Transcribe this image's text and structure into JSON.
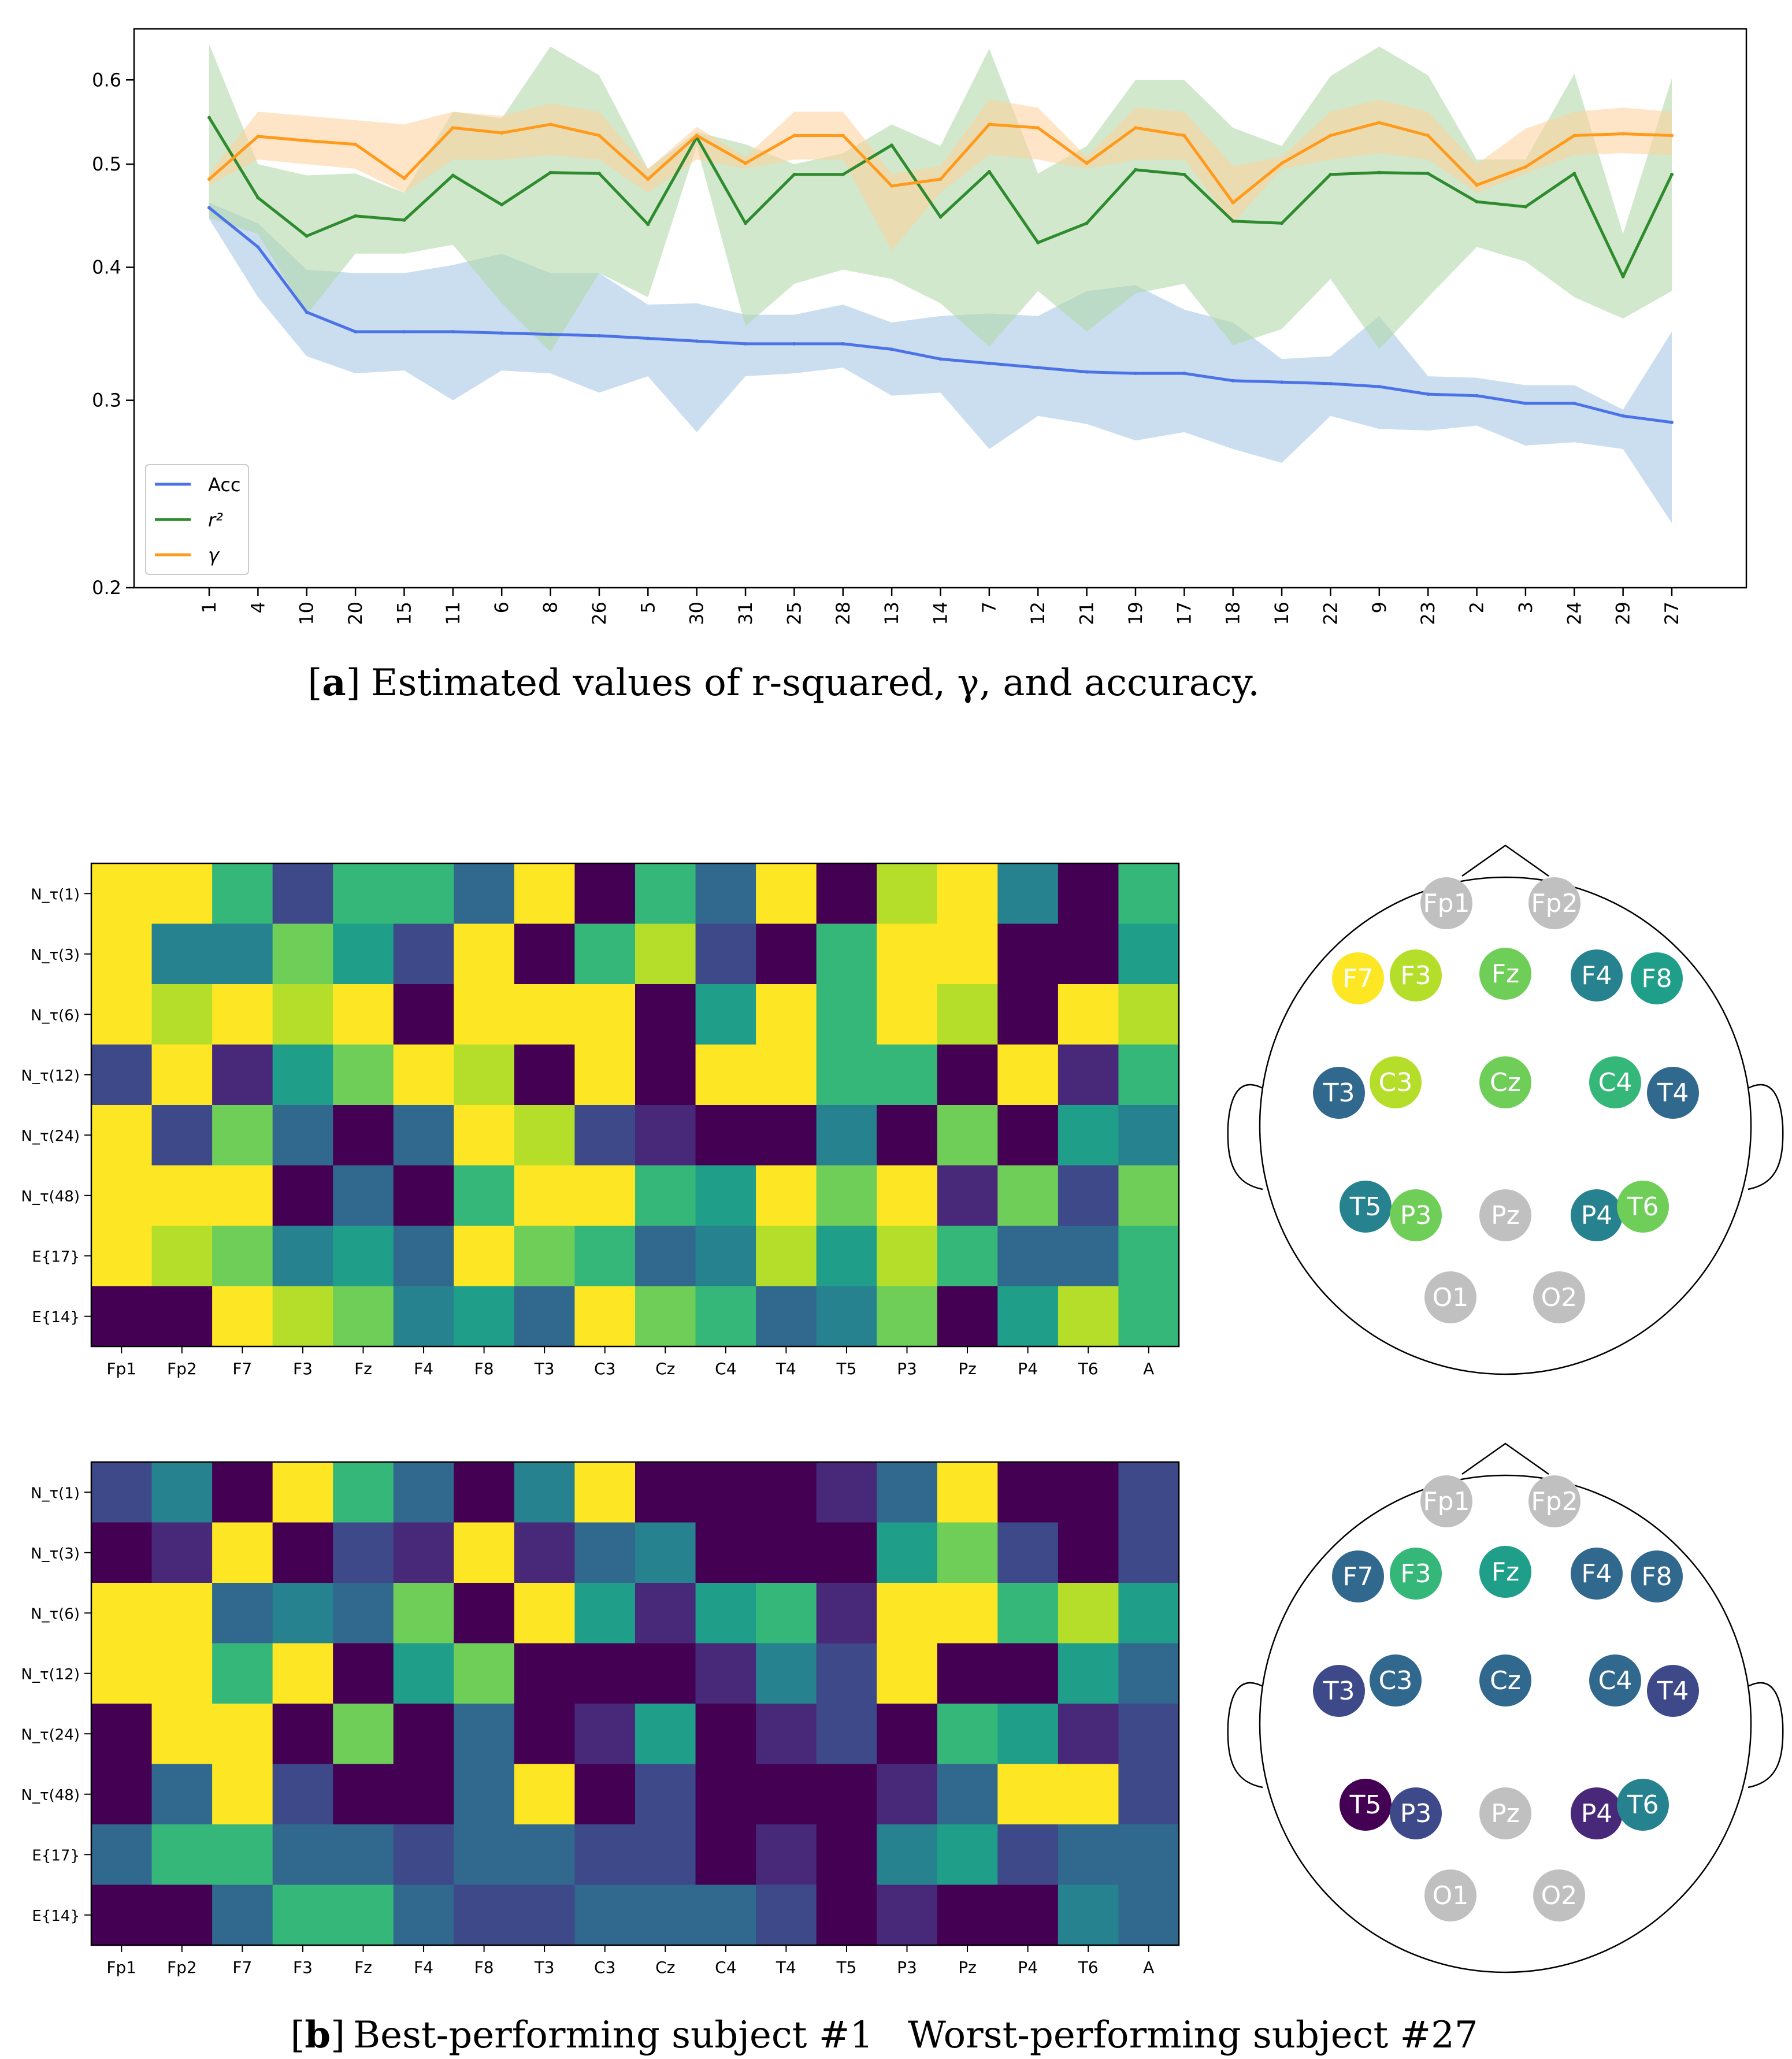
{
  "colors": {
    "acc": "#4c72e8",
    "r2": "#2e8b2e",
    "gamma": "#ff9a1a",
    "acc_band": "#a9c8e6",
    "r2_band": "#b2d8ab",
    "gamma_band": "#ffcf9a",
    "inactive": "#c0c0c0",
    "viridis": [
      "#440154",
      "#482878",
      "#3e4989",
      "#31688e",
      "#26828e",
      "#1f9e89",
      "#35b779",
      "#6ece58",
      "#b5de2b",
      "#fde725"
    ]
  },
  "chart_data": [
    {
      "type": "line",
      "title": "",
      "scale": "log",
      "ylim": [
        0.2,
        0.67
      ],
      "yticks": [
        0.2,
        0.3,
        0.4,
        0.5,
        0.6
      ],
      "ytick_labels": [
        "0.2",
        "0.3",
        "0.4",
        "0.5",
        "0.6"
      ],
      "categories": [
        "1",
        "4",
        "10",
        "20",
        "15",
        "11",
        "6",
        "8",
        "26",
        "5",
        "30",
        "31",
        "25",
        "28",
        "13",
        "14",
        "7",
        "12",
        "21",
        "19",
        "17",
        "18",
        "16",
        "22",
        "9",
        "23",
        "2",
        "3",
        "24",
        "29",
        "27"
      ],
      "series": [
        {
          "name": "Acc",
          "legend_label": "Acc",
          "values": [
            0.455,
            0.418,
            0.363,
            0.348,
            0.348,
            0.348,
            0.347,
            0.346,
            0.345,
            0.343,
            0.341,
            0.339,
            0.339,
            0.339,
            0.335,
            0.328,
            0.325,
            0.322,
            0.319,
            0.318,
            0.318,
            0.313,
            0.312,
            0.311,
            0.309,
            0.304,
            0.303,
            0.298,
            0.298,
            0.29,
            0.286
          ],
          "lower": [
            0.444,
            0.375,
            0.33,
            0.318,
            0.32,
            0.3,
            0.32,
            0.318,
            0.305,
            0.316,
            0.28,
            0.316,
            0.318,
            0.322,
            0.303,
            0.305,
            0.27,
            0.29,
            0.285,
            0.275,
            0.28,
            0.27,
            0.262,
            0.29,
            0.282,
            0.281,
            0.284,
            0.272,
            0.274,
            0.27,
            0.23
          ],
          "upper": [
            0.46,
            0.44,
            0.398,
            0.395,
            0.395,
            0.402,
            0.412,
            0.395,
            0.395,
            0.369,
            0.37,
            0.361,
            0.361,
            0.369,
            0.355,
            0.36,
            0.362,
            0.36,
            0.38,
            0.385,
            0.365,
            0.355,
            0.328,
            0.33,
            0.36,
            0.316,
            0.315,
            0.31,
            0.31,
            0.294,
            0.348
          ]
        },
        {
          "name": "r2",
          "legend_label": "r²",
          "values": [
            0.553,
            0.465,
            0.428,
            0.447,
            0.443,
            0.488,
            0.458,
            0.491,
            0.49,
            0.439,
            0.53,
            0.44,
            0.489,
            0.489,
            0.521,
            0.446,
            0.492,
            0.422,
            0.44,
            0.494,
            0.489,
            0.442,
            0.44,
            0.489,
            0.491,
            0.49,
            0.461,
            0.456,
            0.49,
            0.392,
            0.489
          ],
          "lower": [
            0.445,
            0.43,
            0.361,
            0.412,
            0.412,
            0.42,
            0.37,
            0.333,
            0.395,
            0.375,
            0.52,
            0.352,
            0.386,
            0.398,
            0.39,
            0.37,
            0.337,
            0.38,
            0.348,
            0.378,
            0.386,
            0.338,
            0.35,
            0.39,
            0.335,
            0.375,
            0.418,
            0.405,
            0.375,
            0.358,
            0.38
          ],
          "upper": [
            0.648,
            0.5,
            0.488,
            0.49,
            0.47,
            0.56,
            0.552,
            0.645,
            0.606,
            0.495,
            0.536,
            0.522,
            0.5,
            0.512,
            0.545,
            0.52,
            0.642,
            0.49,
            0.52,
            0.6,
            0.6,
            0.541,
            0.52,
            0.605,
            0.645,
            0.606,
            0.505,
            0.505,
            0.608,
            0.43,
            0.602
          ]
        },
        {
          "name": "gamma",
          "legend_label": "γ",
          "values": [
            0.484,
            0.531,
            0.526,
            0.522,
            0.485,
            0.541,
            0.535,
            0.545,
            0.532,
            0.484,
            0.532,
            0.501,
            0.532,
            0.532,
            0.477,
            0.484,
            0.545,
            0.541,
            0.501,
            0.541,
            0.532,
            0.46,
            0.501,
            0.532,
            0.547,
            0.532,
            0.478,
            0.497,
            0.532,
            0.534,
            0.532
          ],
          "lower": [
            0.478,
            0.505,
            0.5,
            0.495,
            0.47,
            0.505,
            0.505,
            0.51,
            0.505,
            0.47,
            0.505,
            0.495,
            0.505,
            0.505,
            0.415,
            0.47,
            0.51,
            0.505,
            0.495,
            0.505,
            0.505,
            0.44,
            0.495,
            0.505,
            0.512,
            0.505,
            0.47,
            0.49,
            0.51,
            0.512,
            0.51
          ],
          "upper": [
            0.49,
            0.56,
            0.555,
            0.55,
            0.545,
            0.56,
            0.555,
            0.57,
            0.56,
            0.495,
            0.542,
            0.508,
            0.56,
            0.56,
            0.49,
            0.498,
            0.575,
            0.565,
            0.508,
            0.565,
            0.56,
            0.498,
            0.508,
            0.56,
            0.575,
            0.56,
            0.5,
            0.54,
            0.56,
            0.565,
            0.56
          ]
        }
      ],
      "legend_position": "lower-left",
      "caption_bracket_open": "[",
      "caption_letter": "a",
      "caption_bracket_close": "]",
      "caption_text": "Estimated values of r-squared, γ, and accuracy."
    },
    {
      "type": "heatmap",
      "subject": "Best-performing subject #1",
      "columns": [
        "Fp1",
        "Fp2",
        "F7",
        "F3",
        "Fz",
        "F4",
        "F8",
        "T3",
        "C3",
        "Cz",
        "C4",
        "T4",
        "T5",
        "P3",
        "Pz",
        "P4",
        "T6",
        "A"
      ],
      "rows": [
        "N_τ(1)",
        "N_τ(3)",
        "N_τ(6)",
        "N_τ(12)",
        "N_τ(24)",
        "N_τ(48)",
        "E{17}",
        "E{14}"
      ],
      "values": [
        [
          9,
          9,
          6,
          2,
          6,
          6,
          3,
          9,
          0,
          6,
          3,
          9,
          0,
          8,
          9,
          4,
          0,
          6
        ],
        [
          9,
          4,
          4,
          7,
          5,
          2,
          9,
          0,
          6,
          8,
          2,
          0,
          6,
          9,
          9,
          0,
          0,
          5
        ],
        [
          9,
          8,
          9,
          8,
          9,
          0,
          9,
          9,
          9,
          0,
          5,
          9,
          6,
          9,
          8,
          0,
          9,
          8
        ],
        [
          2,
          9,
          1,
          5,
          7,
          9,
          8,
          0,
          9,
          0,
          9,
          9,
          6,
          6,
          0,
          9,
          1,
          6
        ],
        [
          9,
          2,
          7,
          3,
          0,
          3,
          9,
          8,
          2,
          1,
          0,
          0,
          4,
          0,
          7,
          0,
          5,
          4
        ],
        [
          9,
          9,
          9,
          0,
          3,
          0,
          6,
          9,
          9,
          6,
          5,
          9,
          7,
          9,
          1,
          7,
          2,
          7
        ],
        [
          9,
          8,
          7,
          4,
          5,
          3,
          9,
          7,
          6,
          3,
          4,
          8,
          5,
          8,
          6,
          3,
          3,
          6
        ],
        [
          0,
          0,
          9,
          8,
          7,
          4,
          5,
          3,
          9,
          7,
          6,
          3,
          4,
          7,
          0,
          5,
          8,
          6
        ]
      ]
    },
    {
      "type": "heatmap",
      "subject": "Worst-performing subject #27",
      "columns": [
        "Fp1",
        "Fp2",
        "F7",
        "F3",
        "Fz",
        "F4",
        "F8",
        "T3",
        "C3",
        "Cz",
        "C4",
        "T4",
        "T5",
        "P3",
        "Pz",
        "P4",
        "T6",
        "A"
      ],
      "rows": [
        "N_τ(1)",
        "N_τ(3)",
        "N_τ(6)",
        "N_τ(12)",
        "N_τ(24)",
        "N_τ(48)",
        "E{17}",
        "E{14}"
      ],
      "values": [
        [
          2,
          4,
          0,
          9,
          6,
          3,
          0,
          4,
          9,
          0,
          0,
          0,
          1,
          3,
          9,
          0,
          0,
          2
        ],
        [
          0,
          1,
          9,
          0,
          2,
          1,
          9,
          1,
          3,
          4,
          0,
          0,
          0,
          5,
          7,
          2,
          0,
          2
        ],
        [
          9,
          9,
          3,
          4,
          3,
          7,
          0,
          9,
          5,
          1,
          5,
          6,
          1,
          9,
          9,
          6,
          8,
          5
        ],
        [
          9,
          9,
          6,
          9,
          0,
          5,
          7,
          0,
          0,
          0,
          1,
          4,
          2,
          9,
          0,
          0,
          5,
          3
        ],
        [
          0,
          9,
          9,
          0,
          7,
          0,
          3,
          0,
          1,
          5,
          0,
          1,
          2,
          0,
          6,
          5,
          1,
          2
        ],
        [
          0,
          3,
          9,
          2,
          0,
          0,
          3,
          9,
          0,
          2,
          0,
          0,
          0,
          1,
          3,
          9,
          9,
          2
        ],
        [
          3,
          6,
          6,
          3,
          3,
          2,
          3,
          3,
          2,
          2,
          0,
          1,
          0,
          4,
          5,
          2,
          3,
          3
        ],
        [
          0,
          0,
          3,
          6,
          6,
          3,
          2,
          2,
          3,
          3,
          3,
          2,
          0,
          1,
          0,
          0,
          4,
          3
        ]
      ]
    }
  ],
  "headmaps": [
    {
      "name": "best",
      "electrodes": [
        {
          "label": "Fp1",
          "active": false,
          "level": 0
        },
        {
          "label": "Fp2",
          "active": false,
          "level": 0
        },
        {
          "label": "F7",
          "active": true,
          "level": 9
        },
        {
          "label": "F3",
          "active": true,
          "level": 8
        },
        {
          "label": "Fz",
          "active": true,
          "level": 7
        },
        {
          "label": "F4",
          "active": true,
          "level": 4
        },
        {
          "label": "F8",
          "active": true,
          "level": 5
        },
        {
          "label": "T3",
          "active": true,
          "level": 3
        },
        {
          "label": "C3",
          "active": true,
          "level": 8
        },
        {
          "label": "Cz",
          "active": true,
          "level": 7
        },
        {
          "label": "C4",
          "active": true,
          "level": 6
        },
        {
          "label": "T4",
          "active": true,
          "level": 3
        },
        {
          "label": "T5",
          "active": true,
          "level": 4
        },
        {
          "label": "P3",
          "active": true,
          "level": 7
        },
        {
          "label": "Pz",
          "active": false,
          "level": 0
        },
        {
          "label": "P4",
          "active": true,
          "level": 4
        },
        {
          "label": "T6",
          "active": true,
          "level": 7
        },
        {
          "label": "O1",
          "active": false,
          "level": 0
        },
        {
          "label": "O2",
          "active": false,
          "level": 0
        }
      ]
    },
    {
      "name": "worst",
      "electrodes": [
        {
          "label": "Fp1",
          "active": false,
          "level": 0
        },
        {
          "label": "Fp2",
          "active": false,
          "level": 0
        },
        {
          "label": "F7",
          "active": true,
          "level": 3
        },
        {
          "label": "F3",
          "active": true,
          "level": 6
        },
        {
          "label": "Fz",
          "active": true,
          "level": 5
        },
        {
          "label": "F4",
          "active": true,
          "level": 3
        },
        {
          "label": "F8",
          "active": true,
          "level": 3
        },
        {
          "label": "T3",
          "active": true,
          "level": 2
        },
        {
          "label": "C3",
          "active": true,
          "level": 3
        },
        {
          "label": "Cz",
          "active": true,
          "level": 3
        },
        {
          "label": "C4",
          "active": true,
          "level": 3
        },
        {
          "label": "T4",
          "active": true,
          "level": 2
        },
        {
          "label": "T5",
          "active": true,
          "level": 0
        },
        {
          "label": "P3",
          "active": true,
          "level": 2
        },
        {
          "label": "Pz",
          "active": false,
          "level": 0
        },
        {
          "label": "P4",
          "active": true,
          "level": 1
        },
        {
          "label": "T6",
          "active": true,
          "level": 4
        },
        {
          "label": "O1",
          "active": false,
          "level": 0
        },
        {
          "label": "O2",
          "active": false,
          "level": 0
        }
      ]
    }
  ],
  "caption_b": {
    "bracket_open": "[",
    "letter": "b",
    "bracket_close": "]",
    "text_best": "Best-performing subject #1",
    "text_worst": "Worst-performing subject #27"
  }
}
